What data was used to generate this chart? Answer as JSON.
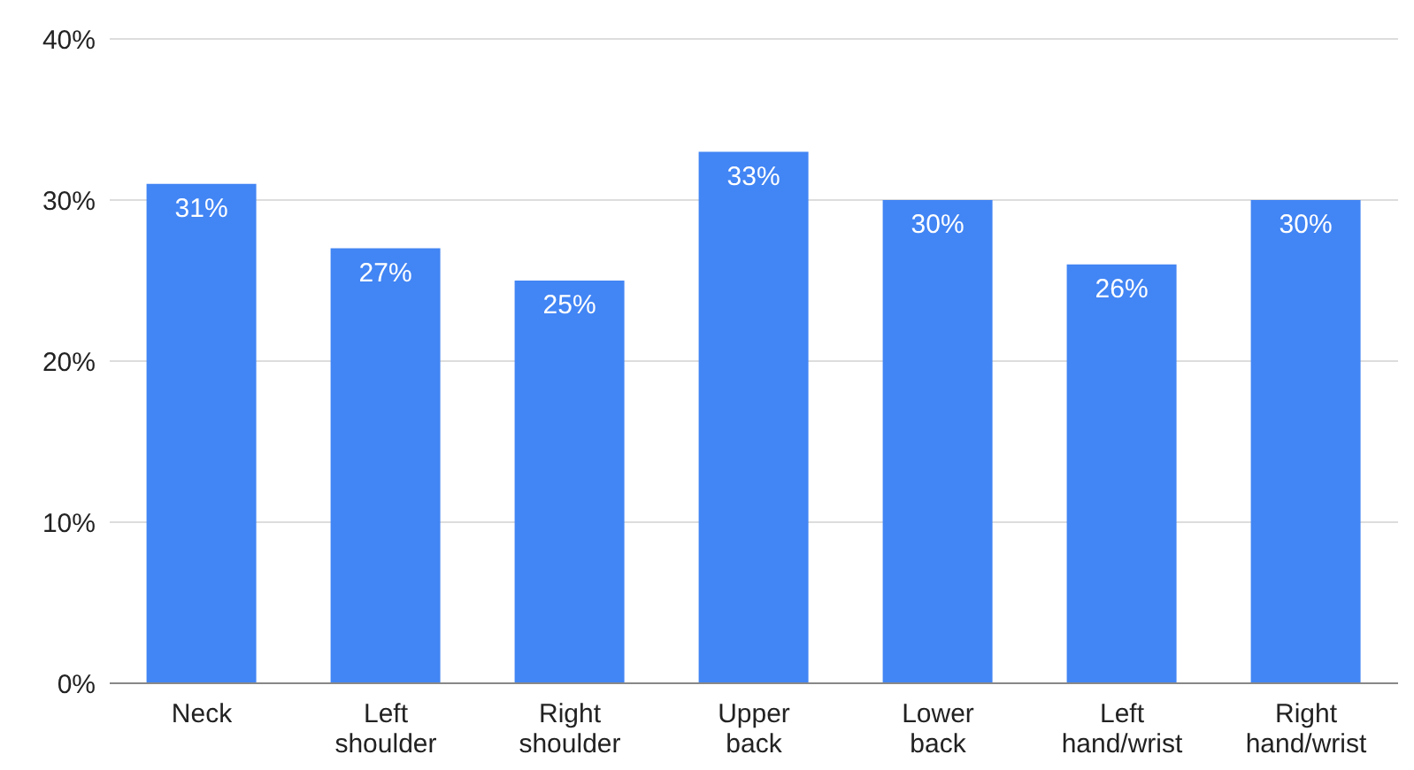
{
  "chart_data": {
    "type": "bar",
    "categories": [
      "Neck",
      "Left shoulder",
      "Right shoulder",
      "Upper back",
      "Lower back",
      "Left hand/wrist",
      "Right hand/wrist"
    ],
    "values": [
      31,
      27,
      25,
      33,
      30,
      26,
      30
    ],
    "value_labels": [
      "31%",
      "27%",
      "25%",
      "33%",
      "30%",
      "26%",
      "30%"
    ],
    "color": "#4285f4",
    "ylim": [
      0,
      40
    ],
    "yticks": [
      {
        "value": 0,
        "label": "0%"
      },
      {
        "value": 10,
        "label": "10%"
      },
      {
        "value": 20,
        "label": "20%"
      },
      {
        "value": 30,
        "label": "30%"
      },
      {
        "value": 40,
        "label": "40%"
      }
    ],
    "grid": "y"
  }
}
